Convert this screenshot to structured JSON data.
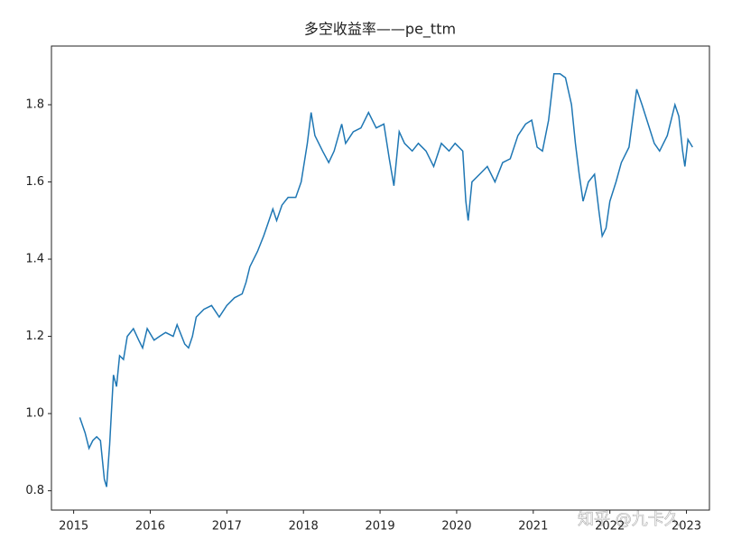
{
  "chart_data": {
    "type": "line",
    "title": "多空收益率——pe_ttm",
    "watermark": "知乎 @九卡久",
    "color": "#1f77b4",
    "x": [
      2015.08,
      2015.15,
      2015.2,
      2015.25,
      2015.3,
      2015.35,
      2015.4,
      2015.43,
      2015.47,
      2015.52,
      2015.56,
      2015.6,
      2015.65,
      2015.7,
      2015.78,
      2015.85,
      2015.9,
      2015.96,
      2016.05,
      2016.12,
      2016.2,
      2016.3,
      2016.35,
      2016.45,
      2016.5,
      2016.55,
      2016.6,
      2016.7,
      2016.8,
      2016.9,
      2017.0,
      2017.1,
      2017.2,
      2017.25,
      2017.3,
      2017.4,
      2017.48,
      2017.55,
      2017.6,
      2017.65,
      2017.72,
      2017.8,
      2017.9,
      2017.97,
      2018.05,
      2018.1,
      2018.15,
      2018.25,
      2018.33,
      2018.4,
      2018.5,
      2018.55,
      2018.65,
      2018.75,
      2018.85,
      2018.95,
      2019.05,
      2019.12,
      2019.18,
      2019.25,
      2019.32,
      2019.42,
      2019.5,
      2019.6,
      2019.7,
      2019.8,
      2019.9,
      2019.98,
      2020.08,
      2020.12,
      2020.15,
      2020.2,
      2020.3,
      2020.4,
      2020.5,
      2020.6,
      2020.7,
      2020.8,
      2020.9,
      2020.98,
      2021.05,
      2021.12,
      2021.2,
      2021.27,
      2021.35,
      2021.42,
      2021.5,
      2021.55,
      2021.6,
      2021.65,
      2021.72,
      2021.8,
      2021.86,
      2021.9,
      2021.95,
      2022.0,
      2022.08,
      2022.15,
      2022.25,
      2022.35,
      2022.42,
      2022.5,
      2022.58,
      2022.65,
      2022.75,
      2022.85,
      2022.9,
      2022.95,
      2022.98,
      2023.02,
      2023.08
    ],
    "values": [
      0.99,
      0.95,
      0.91,
      0.93,
      0.94,
      0.93,
      0.83,
      0.81,
      0.92,
      1.1,
      1.07,
      1.15,
      1.14,
      1.2,
      1.22,
      1.19,
      1.17,
      1.22,
      1.19,
      1.2,
      1.21,
      1.2,
      1.23,
      1.18,
      1.17,
      1.2,
      1.25,
      1.27,
      1.28,
      1.25,
      1.28,
      1.3,
      1.31,
      1.34,
      1.38,
      1.42,
      1.46,
      1.5,
      1.53,
      1.5,
      1.54,
      1.56,
      1.56,
      1.6,
      1.7,
      1.78,
      1.72,
      1.68,
      1.65,
      1.68,
      1.75,
      1.7,
      1.73,
      1.74,
      1.78,
      1.74,
      1.75,
      1.66,
      1.59,
      1.73,
      1.7,
      1.68,
      1.7,
      1.68,
      1.64,
      1.7,
      1.68,
      1.7,
      1.68,
      1.55,
      1.5,
      1.6,
      1.62,
      1.64,
      1.6,
      1.65,
      1.66,
      1.72,
      1.75,
      1.76,
      1.69,
      1.68,
      1.76,
      1.88,
      1.88,
      1.87,
      1.8,
      1.7,
      1.62,
      1.55,
      1.6,
      1.62,
      1.52,
      1.46,
      1.48,
      1.55,
      1.6,
      1.65,
      1.69,
      1.84,
      1.8,
      1.75,
      1.7,
      1.68,
      1.72,
      1.8,
      1.77,
      1.68,
      1.64,
      1.71,
      1.69
    ],
    "xlim": [
      2014.71,
      2023.3
    ],
    "ylim": [
      0.75,
      1.952
    ],
    "xticks": [
      2015,
      2016,
      2017,
      2018,
      2019,
      2020,
      2021,
      2022,
      2023
    ],
    "yticks": [
      0.8,
      {
        "value": 1,
        "label": "1.0"
      },
      1.2,
      1.4,
      1.6,
      1.8
    ]
  }
}
